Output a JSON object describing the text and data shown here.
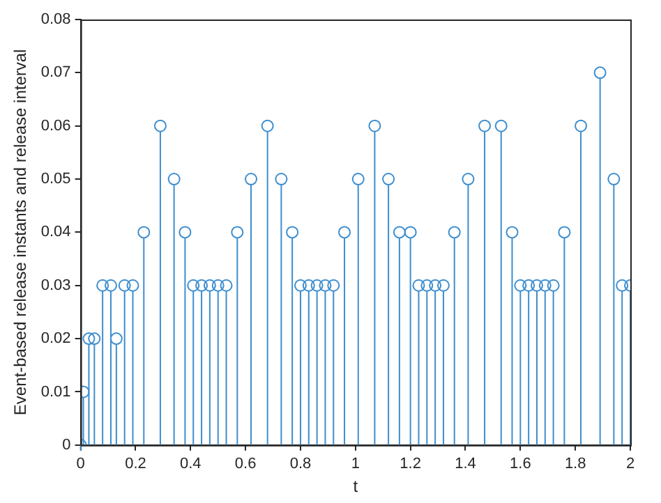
{
  "chart_data": {
    "type": "lollipop",
    "xlabel": "t",
    "ylabel": "Event-based release instants and release interval",
    "x": [
      0,
      0.01,
      0.03,
      0.05,
      0.08,
      0.11,
      0.13,
      0.16,
      0.19,
      0.23,
      0.29,
      0.34,
      0.38,
      0.41,
      0.44,
      0.47,
      0.5,
      0.53,
      0.57,
      0.62,
      0.68,
      0.73,
      0.77,
      0.8,
      0.83,
      0.86,
      0.89,
      0.92,
      0.96,
      1.01,
      1.07,
      1.12,
      1.16,
      1.2,
      1.23,
      1.26,
      1.29,
      1.32,
      1.36,
      1.41,
      1.47,
      1.53,
      1.57,
      1.6,
      1.63,
      1.66,
      1.69,
      1.72,
      1.76,
      1.82,
      1.89,
      1.94,
      1.97,
      2.0
    ],
    "values": [
      0,
      0.01,
      0.02,
      0.02,
      0.03,
      0.03,
      0.02,
      0.03,
      0.03,
      0.04,
      0.06,
      0.05,
      0.04,
      0.03,
      0.03,
      0.03,
      0.03,
      0.03,
      0.04,
      0.05,
      0.06,
      0.05,
      0.04,
      0.03,
      0.03,
      0.03,
      0.03,
      0.03,
      0.04,
      0.05,
      0.06,
      0.05,
      0.04,
      0.04,
      0.03,
      0.03,
      0.03,
      0.03,
      0.04,
      0.05,
      0.06,
      0.06,
      0.04,
      0.03,
      0.03,
      0.03,
      0.03,
      0.03,
      0.04,
      0.06,
      0.07,
      0.05,
      0.03,
      0.03
    ],
    "color": "#3d8ecf",
    "marker": "circle",
    "xlim": [
      0,
      2
    ],
    "xticks": [
      0,
      0.2,
      0.4,
      0.6,
      0.8,
      1,
      1.2,
      1.4,
      1.6,
      1.8,
      2
    ],
    "ylim": [
      0,
      0.08
    ],
    "yticks": [
      0,
      0.01,
      0.02,
      0.03,
      0.04,
      0.05,
      0.06,
      0.07,
      0.08
    ],
    "grid": false,
    "legend": false
  }
}
